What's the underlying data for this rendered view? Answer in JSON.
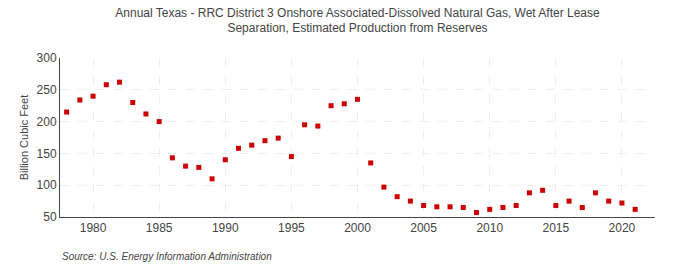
{
  "chart_data": {
    "type": "scatter",
    "title": "Annual Texas - RRC District 3 Onshore Associated-Dissolved Natural Gas, Wet After Lease\nSeparation, Estimated Production from Reserves",
    "ylabel": "Billion Cubic Feet",
    "annotations": [
      "Source: U.S. Energy Information Administration"
    ],
    "x": [
      1978,
      1979,
      1980,
      1981,
      1982,
      1983,
      1984,
      1985,
      1986,
      1987,
      1988,
      1989,
      1990,
      1991,
      1992,
      1993,
      1994,
      1995,
      1996,
      1997,
      1998,
      1999,
      2000,
      2001,
      2002,
      2003,
      2004,
      2005,
      2006,
      2007,
      2008,
      2009,
      2010,
      2011,
      2012,
      2013,
      2014,
      2015,
      2016,
      2017,
      2018,
      2019,
      2020,
      2021
    ],
    "values": [
      215,
      234,
      240,
      258,
      262,
      230,
      212,
      200,
      143,
      130,
      128,
      110,
      140,
      158,
      163,
      170,
      174,
      145,
      195,
      193,
      225,
      228,
      235,
      135,
      97,
      82,
      75,
      68,
      66,
      66,
      65,
      57,
      62,
      65,
      68,
      88,
      92,
      68,
      75,
      65,
      88,
      75,
      72,
      62
    ],
    "color": "#cc0000",
    "marker": "square",
    "xlim": [
      1977.5,
      2022.5
    ],
    "xticks": [
      1980,
      1985,
      1990,
      1995,
      2000,
      2005,
      2010,
      2015,
      2020
    ],
    "ylim": [
      50,
      300
    ],
    "yticks": [
      50,
      100,
      150,
      200,
      250,
      300
    ],
    "grid": true
  }
}
